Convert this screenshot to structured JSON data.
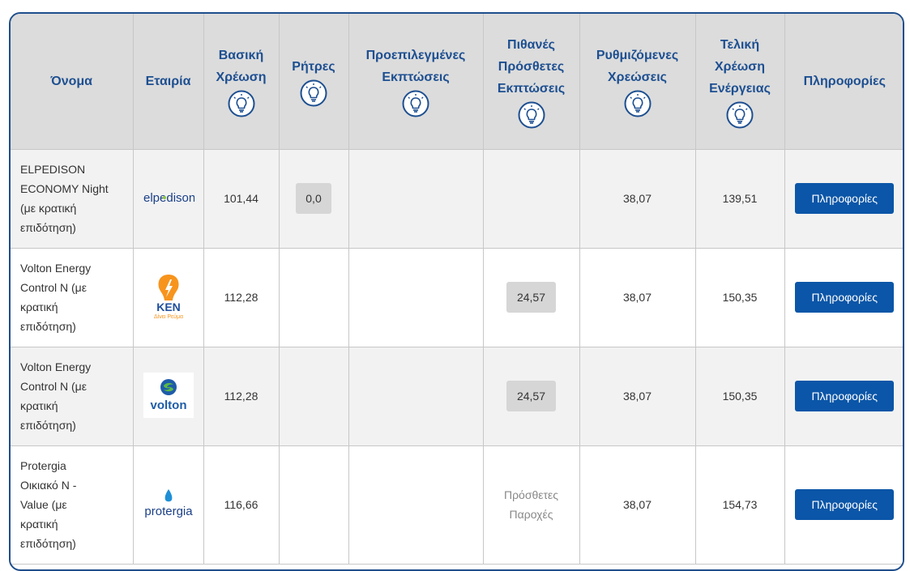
{
  "headers": {
    "name": "Όνομα",
    "company": "Εταιρία",
    "base_charge": [
      "Βασική",
      "Χρέωση"
    ],
    "clauses": "Ρήτρες",
    "preselected_discounts": [
      "Προεπιλεγμένες",
      "Εκπτώσεις"
    ],
    "possible_discounts": [
      "Πιθανές",
      "Πρόσθετες",
      "Εκπτώσεις"
    ],
    "regulated_charges": [
      "Ρυθμιζόμενες",
      "Χρεώσεις"
    ],
    "final_charge": [
      "Τελική",
      "Χρέωση",
      "Ενέργειας"
    ],
    "info": "Πληροφορίες"
  },
  "rows": [
    {
      "name": [
        "ELPEDISON",
        "ECONOMY Night",
        "(με κρατική",
        "επιδότηση)"
      ],
      "company_logo": "elpedison-logo",
      "logo_text": "elpedison",
      "base_charge": "101,44",
      "clauses": "0,0",
      "preselected": "",
      "possible": "",
      "regulated": "38,07",
      "final": "139,51",
      "button": "Πληροφορίες"
    },
    {
      "name": [
        "Volton Energy",
        "Control N (με",
        "κρατική",
        "επιδότηση)"
      ],
      "company_logo": "ken-logo",
      "logo_text": "KEN",
      "logo_subtext": "Δίνει Ρεύμα",
      "base_charge": "112,28",
      "clauses": "",
      "preselected": "",
      "possible": "24,57",
      "regulated": "38,07",
      "final": "150,35",
      "button": "Πληροφορίες"
    },
    {
      "name": [
        "Volton Energy",
        "Control N (με",
        "κρατική",
        "επιδότηση)"
      ],
      "company_logo": "volton-logo",
      "logo_text": "volton",
      "base_charge": "112,28",
      "clauses": "",
      "preselected": "",
      "possible": "24,57",
      "regulated": "38,07",
      "final": "150,35",
      "button": "Πληροφορίες"
    },
    {
      "name": [
        "Protergia",
        "Οικιακό Ν -",
        "Value (με",
        "κρατική",
        "επιδότηση)"
      ],
      "company_logo": "protergia-logo",
      "logo_text": "protergia",
      "base_charge": "116,66",
      "clauses": "",
      "preselected": "",
      "possible_extra": [
        "Πρόσθετες",
        "Παροχές"
      ],
      "regulated": "38,07",
      "final": "154,73",
      "button": "Πληροφορίες"
    }
  ],
  "colors": {
    "header_bg": "#dcdcdc",
    "header_text": "#1d4f91",
    "button_bg": "#0b56a8",
    "pill_bg": "#d6d6d6",
    "frame_border": "#1f4e8c"
  }
}
